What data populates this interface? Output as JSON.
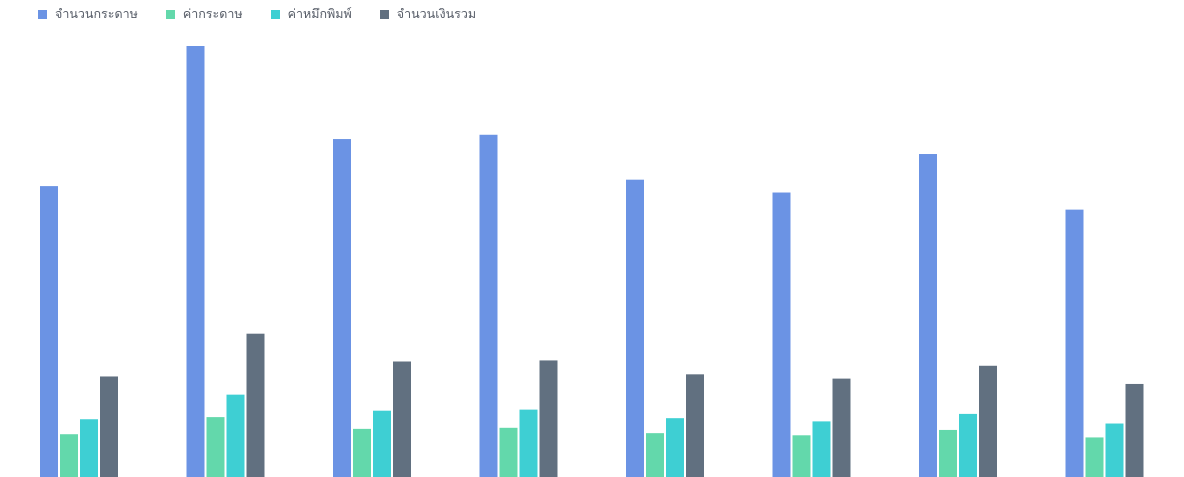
{
  "chart_data": {
    "type": "bar",
    "categories": [
      "",
      "",
      "",
      "",
      "",
      "",
      "",
      ""
    ],
    "series": [
      {
        "name": "จำนวนกระดาษ",
        "color": "#6b93e4",
        "values": [
          272,
          403,
          316,
          320,
          278,
          266,
          302,
          250
        ]
      },
      {
        "name": "ค่ากระดาษ",
        "color": "#63d8ab",
        "values": [
          40,
          56,
          45,
          46,
          41,
          39,
          44,
          37
        ]
      },
      {
        "name": "ค่าหมึกพิมพ์",
        "color": "#3ecfd3",
        "values": [
          54,
          77,
          62,
          63,
          55,
          52,
          59,
          50
        ]
      },
      {
        "name": "จำนวนเงินรวม",
        "color": "#617080",
        "values": [
          94,
          134,
          108,
          109,
          96,
          92,
          104,
          87
        ]
      }
    ],
    "ylim": [
      0,
      403
    ],
    "grid": false,
    "legend_position": "top-left"
  }
}
